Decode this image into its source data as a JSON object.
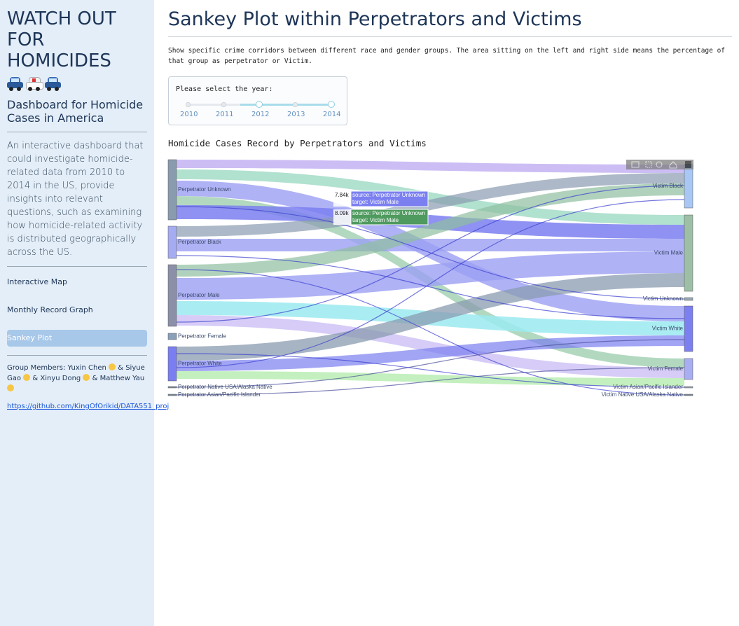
{
  "sidebar": {
    "title_lines": [
      "WATCH OUT",
      "FOR",
      "HOMICIDES"
    ],
    "icons": [
      "police-car-icon",
      "ambulance-icon",
      "police-car-icon"
    ],
    "subtitle": "Dashboard for Homicide Cases in America",
    "description": "An interactive dashboard that could investigate homicide-related data from 2010 to 2014 in the US, provide insights into relevant questions, such as examining how homicide-related activity is distributed geographically across the US.",
    "nav": [
      {
        "label": "Interactive Map",
        "active": false
      },
      {
        "label": "Monthly Record Graph",
        "active": false
      },
      {
        "label": "Sankey Plot",
        "active": true
      }
    ],
    "members_prefix": "Group Members: Yuxin Chen",
    "members_parts": [
      "& Siyue Gao",
      "& Xinyu Dong",
      "& Matthew Yau"
    ],
    "link": "https://github.com/KingOfOrikid/DATA551_proj"
  },
  "main": {
    "title": "Sankey Plot within Perpetrators and Victims",
    "description": "Show specific crime corridors between different race and gender groups. The area sitting on the left and right side means the percentage of that group as perpetrator or Victim.",
    "slider": {
      "label": "Please select the year:",
      "marks": [
        "2010",
        "2011",
        "2012",
        "2013",
        "2014"
      ],
      "selected_range": [
        "2012",
        "2014"
      ]
    },
    "chart_title": "Homicide Cases Record by Perpetrators and Victims",
    "tooltips": [
      {
        "value": "7.84k",
        "source": "source: Perpetrator Unknown",
        "target": "target: Victim Male"
      },
      {
        "value": "8.09k",
        "source": "source: Perpetrator Unknown",
        "target": "target: Victim Male"
      }
    ]
  },
  "chart_data": {
    "type": "sankey",
    "title": "Homicide Cases Record by Perpetrators and Victims",
    "source_nodes": [
      "Perpetrator Unknown",
      "Perpetrator Black",
      "Perpetrator Male",
      "Perpetrator Female",
      "Perpetrator White",
      "Perpetrator Native USA/Alaska Native",
      "Perpetrator Asian/Pacific Islander"
    ],
    "target_nodes": [
      "Victim Black",
      "Victim Male",
      "Victim Unknown",
      "Victim White",
      "Victim Female",
      "Victim Asian/Pacific Islander",
      "Victim Native USA/Alaska Native"
    ],
    "colors": {
      "source_nodes": [
        "#8a9bb0",
        "#a6acf2",
        "#8c8fa8",
        "#8aa0b8",
        "#7a7ef0",
        "#7f8c9a",
        "#7f8c9a"
      ],
      "target_nodes": [
        "#a9c7f5",
        "#9dbfa6",
        "#9aa8b3",
        "#7b7ff0",
        "#a8aef2",
        "#9aa8b3",
        "#7f8c9a"
      ]
    },
    "highlighted_links": [
      {
        "source": "Perpetrator Unknown",
        "target": "Victim Male",
        "value": 7840
      },
      {
        "source": "Perpetrator Unknown",
        "target": "Victim Male",
        "value": 8090
      }
    ]
  }
}
